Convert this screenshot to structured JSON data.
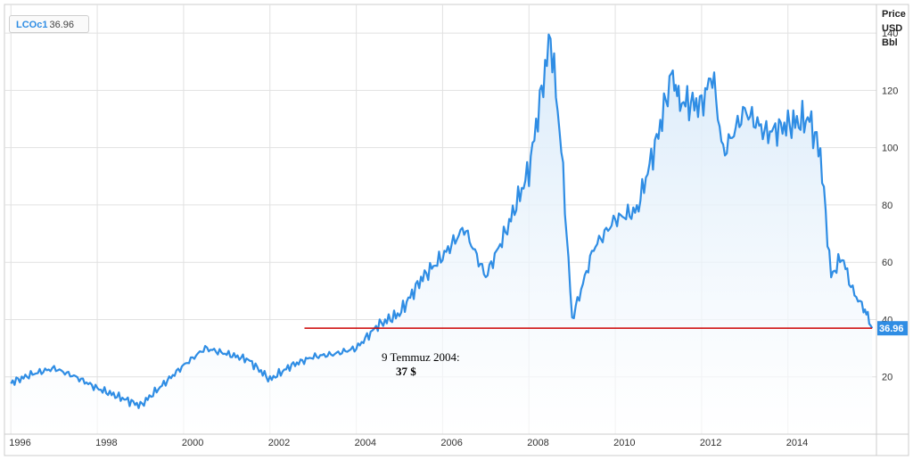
{
  "legend": {
    "symbol": "LCOc1",
    "value": "36.96"
  },
  "axis": {
    "y_title_1": "Price",
    "y_title_2": "USD",
    "y_title_3": "Bbl"
  },
  "last_price_label": "36.96",
  "annotation": {
    "line1": "9 Temmuz 2004:",
    "line2": "37 $"
  },
  "colors": {
    "series": "#2f8de4",
    "fill": "#d7e9f9",
    "reference_line": "#cc0000",
    "badge": "#2f8de4"
  },
  "chart_data": {
    "type": "area",
    "title": "",
    "xlabel": "",
    "ylabel": "Price USD Bbl",
    "xlim": [
      1995.85,
      2016.05
    ],
    "ylim": [
      0,
      150
    ],
    "x_ticks": [
      "1996",
      "1998",
      "2000",
      "2002",
      "2004",
      "2006",
      "2008",
      "2010",
      "2012",
      "2014"
    ],
    "y_ticks": [
      20,
      40,
      60,
      80,
      100,
      120,
      140
    ],
    "grid": true,
    "series": [
      {
        "name": "LCOc1",
        "x": [
          1996.0,
          1996.5,
          1997.0,
          1997.5,
          1998.0,
          1998.5,
          1999.0,
          1999.5,
          2000.0,
          2000.5,
          2001.0,
          2001.5,
          2002.0,
          2002.5,
          2003.0,
          2003.5,
          2004.0,
          2004.5,
          2005.0,
          2005.5,
          2006.0,
          2006.5,
          2007.0,
          2007.5,
          2008.0,
          2008.5,
          2008.75,
          2009.0,
          2009.5,
          2010.0,
          2010.5,
          2011.0,
          2011.3,
          2011.5,
          2012.0,
          2012.25,
          2012.5,
          2013.0,
          2013.5,
          2014.0,
          2014.5,
          2014.75,
          2015.0,
          2015.25,
          2015.5,
          2015.75,
          2015.95
        ],
        "y": [
          18,
          21,
          23,
          20,
          16,
          13,
          10,
          17,
          24,
          30,
          28,
          26,
          19,
          24,
          27,
          28,
          30,
          38,
          42,
          54,
          62,
          72,
          55,
          72,
          92,
          139,
          100,
          40,
          65,
          75,
          78,
          105,
          125,
          116,
          115,
          126,
          98,
          113,
          105,
          108,
          110,
          98,
          55,
          62,
          50,
          44,
          37
        ]
      }
    ],
    "reference_line": {
      "y": 37,
      "x_start": 2002.8,
      "x_end": 2015.95
    },
    "last_value": 36.96
  }
}
